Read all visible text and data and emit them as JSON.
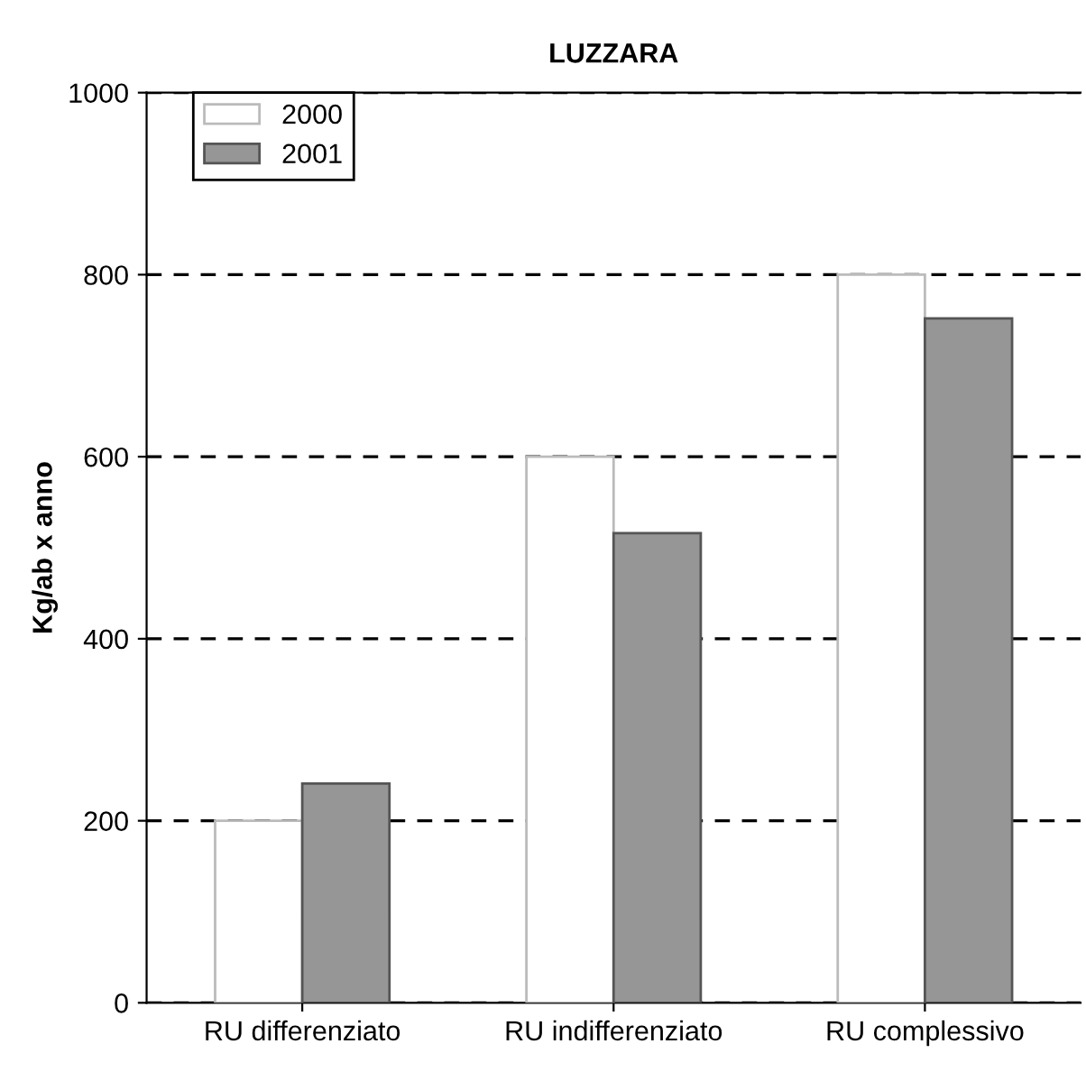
{
  "chart_data": {
    "type": "bar",
    "title": "LUZZARA",
    "ylabel": "Kg/ab x anno",
    "categories": [
      "RU differenziato",
      "RU indifferenziato",
      "RU complessivo"
    ],
    "series": [
      {
        "name": "2000",
        "color": "#ffffff",
        "values": [
          200,
          600,
          800
        ]
      },
      {
        "name": "2001",
        "color": "#969696",
        "values": [
          241,
          516,
          752
        ]
      }
    ],
    "ylim": [
      0,
      1000
    ],
    "yticks": [
      0,
      200,
      400,
      600,
      800,
      1000
    ],
    "grid": "y",
    "legend": "top left"
  }
}
